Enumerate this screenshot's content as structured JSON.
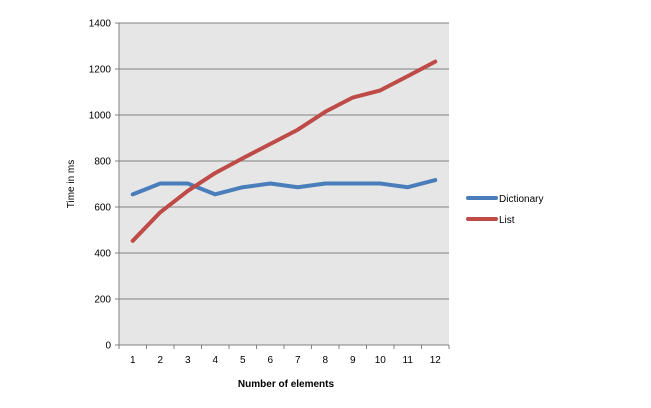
{
  "chart_data": {
    "type": "line",
    "title": "",
    "xlabel": "Number of elements",
    "ylabel": "Time in ms",
    "x": [
      1,
      2,
      3,
      4,
      5,
      6,
      7,
      8,
      9,
      10,
      11,
      12
    ],
    "ylim": [
      0,
      1400
    ],
    "yticks": [
      0,
      200,
      400,
      600,
      800,
      1000,
      1200,
      1400
    ],
    "grid": true,
    "legend_position": "right",
    "plot_background": "#e6e6e6",
    "series": [
      {
        "name": "Dictionary",
        "color": "#4a7ebb",
        "values": [
          655,
          702,
          702,
          655,
          686,
          702,
          686,
          702,
          702,
          702,
          686,
          717
        ]
      },
      {
        "name": "List",
        "color": "#be4b48",
        "values": [
          453,
          577,
          670,
          748,
          812,
          874,
          936,
          1014,
          1076,
          1107,
          1169,
          1232
        ]
      }
    ]
  }
}
